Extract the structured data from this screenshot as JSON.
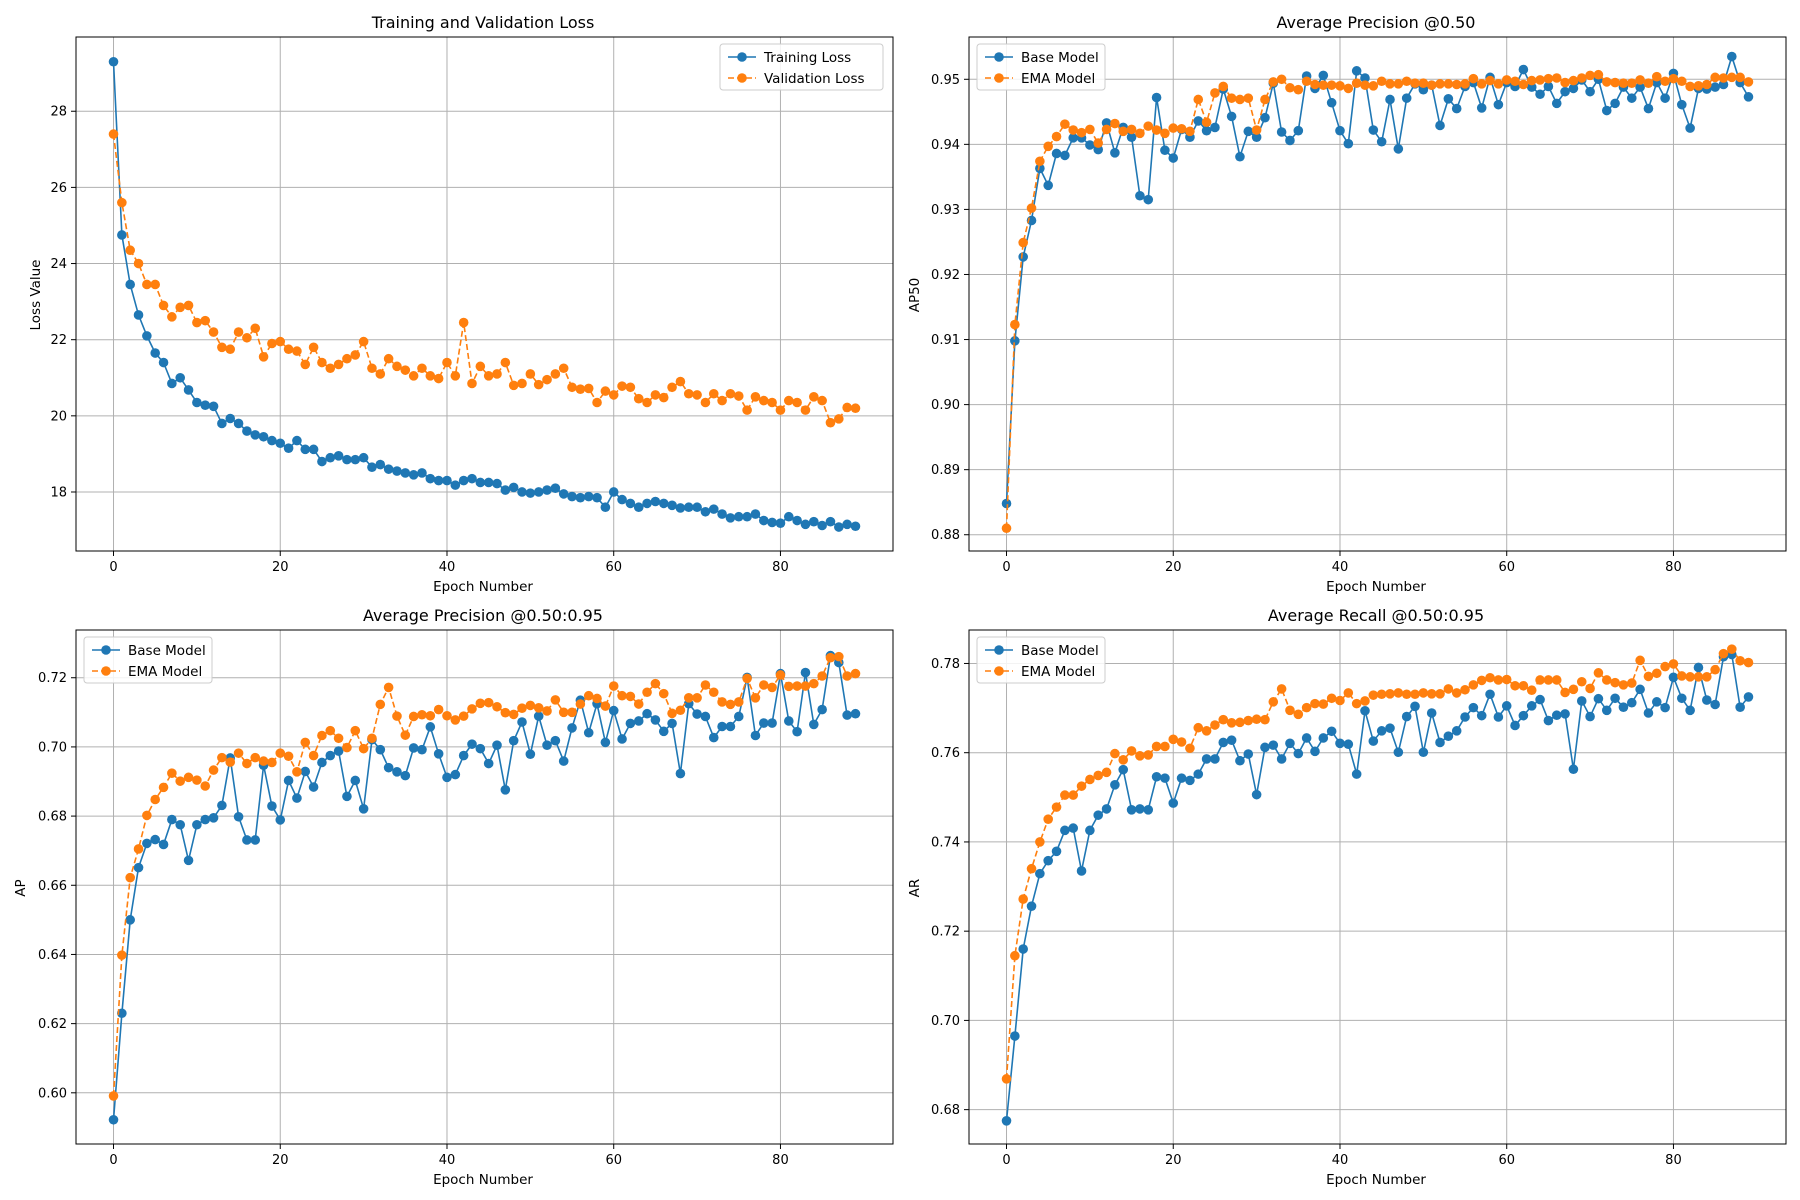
{
  "colors": {
    "series_1": "#1f77b4",
    "series_2": "#ff7f0e",
    "grid": "#b0b0b0"
  },
  "chart_data": [
    {
      "type": "line",
      "title": "Training and Validation Loss",
      "xlabel": "Epoch Number",
      "ylabel": "Loss Value",
      "xlim": [
        -4.5,
        93.5
      ],
      "ylim": [
        16.45,
        29.95
      ],
      "xticks": [
        0,
        20,
        40,
        60,
        80
      ],
      "yticks": [
        18,
        20,
        22,
        24,
        26,
        28
      ],
      "tick_decimals": 0,
      "grid": true,
      "legend_position": "top-right",
      "series": [
        {
          "name": "Training Loss",
          "style": "solid",
          "values": [
            29.3,
            24.75,
            23.45,
            22.65,
            22.1,
            21.65,
            21.4,
            20.85,
            21.0,
            20.68,
            20.35,
            20.28,
            20.25,
            19.8,
            19.93,
            19.8,
            19.6,
            19.5,
            19.45,
            19.35,
            19.28,
            19.15,
            19.35,
            19.12,
            19.12,
            18.8,
            18.9,
            18.95,
            18.85,
            18.85,
            18.9,
            18.65,
            18.72,
            18.6,
            18.55,
            18.5,
            18.45,
            18.5,
            18.35,
            18.3,
            18.3,
            18.18,
            18.3,
            18.35,
            18.25,
            18.25,
            18.22,
            18.05,
            18.12,
            18.0,
            17.97,
            18.0,
            18.05,
            18.1,
            17.95,
            17.88,
            17.85,
            17.88,
            17.85,
            17.6,
            18.0,
            17.8,
            17.7,
            17.6,
            17.7,
            17.75,
            17.7,
            17.65,
            17.58,
            17.6,
            17.6,
            17.48,
            17.55,
            17.42,
            17.32,
            17.35,
            17.35,
            17.42,
            17.25,
            17.2,
            17.18,
            17.35,
            17.25,
            17.15,
            17.22,
            17.12,
            17.22,
            17.08,
            17.15,
            17.1
          ]
        },
        {
          "name": "Validation Loss",
          "style": "dashed",
          "values": [
            27.4,
            25.6,
            24.35,
            24.0,
            23.45,
            23.45,
            22.9,
            22.6,
            22.85,
            22.9,
            22.45,
            22.5,
            22.2,
            21.8,
            21.75,
            22.2,
            22.05,
            22.3,
            21.55,
            21.9,
            21.95,
            21.75,
            21.7,
            21.35,
            21.8,
            21.4,
            21.25,
            21.35,
            21.5,
            21.6,
            21.95,
            21.25,
            21.1,
            21.5,
            21.3,
            21.2,
            21.05,
            21.25,
            21.05,
            20.98,
            21.4,
            21.05,
            22.45,
            20.85,
            21.3,
            21.05,
            21.1,
            21.4,
            20.8,
            20.85,
            21.1,
            20.82,
            20.95,
            21.1,
            21.25,
            20.75,
            20.7,
            20.72,
            20.35,
            20.65,
            20.55,
            20.78,
            20.75,
            20.45,
            20.35,
            20.55,
            20.48,
            20.75,
            20.9,
            20.58,
            20.55,
            20.35,
            20.58,
            20.4,
            20.58,
            20.52,
            20.15,
            20.5,
            20.4,
            20.35,
            20.15,
            20.4,
            20.35,
            20.15,
            20.5,
            20.4,
            19.82,
            19.92,
            20.22,
            20.2
          ]
        }
      ]
    },
    {
      "type": "line",
      "title": "Average Precision @0.50",
      "xlabel": "Epoch Number",
      "ylabel": "AP50",
      "xlim": [
        -4.5,
        93.5
      ],
      "ylim": [
        0.8775,
        0.9565
      ],
      "xticks": [
        0,
        20,
        40,
        60,
        80
      ],
      "yticks": [
        0.88,
        0.89,
        0.9,
        0.91,
        0.92,
        0.93,
        0.94,
        0.95
      ],
      "tick_decimals": 2,
      "grid": true,
      "legend_position": "top-left",
      "series": [
        {
          "name": "Base Model",
          "style": "solid",
          "values": [
            0.8848,
            0.9098,
            0.9227,
            0.9283,
            0.9363,
            0.9337,
            0.9386,
            0.9383,
            0.941,
            0.941,
            0.9399,
            0.9392,
            0.9433,
            0.9387,
            0.9426,
            0.9411,
            0.9321,
            0.9315,
            0.9472,
            0.9391,
            0.9379,
            0.9423,
            0.9411,
            0.9436,
            0.9421,
            0.9426,
            0.9485,
            0.9443,
            0.9381,
            0.942,
            0.9411,
            0.9441,
            0.9494,
            0.9419,
            0.9406,
            0.9421,
            0.9505,
            0.9486,
            0.9506,
            0.9464,
            0.9421,
            0.9401,
            0.9513,
            0.9502,
            0.9422,
            0.9404,
            0.9469,
            0.9393,
            0.9471,
            0.9493,
            0.9484,
            0.9491,
            0.9429,
            0.947,
            0.9455,
            0.9489,
            0.9495,
            0.9456,
            0.9503,
            0.9461,
            0.9495,
            0.9489,
            0.9515,
            0.9488,
            0.9477,
            0.9489,
            0.9463,
            0.9481,
            0.9486,
            0.9499,
            0.9481,
            0.95,
            0.9452,
            0.9463,
            0.9488,
            0.9471,
            0.9488,
            0.9455,
            0.9495,
            0.9471,
            0.9509,
            0.9461,
            0.9425,
            0.9486,
            0.9485,
            0.9488,
            0.9492,
            0.9535,
            0.9495,
            0.9473
          ]
        },
        {
          "name": "EMA Model",
          "style": "dashed",
          "values": [
            0.881,
            0.9123,
            0.9249,
            0.9302,
            0.9374,
            0.9397,
            0.9412,
            0.9431,
            0.9422,
            0.9418,
            0.9423,
            0.9402,
            0.9423,
            0.9432,
            0.942,
            0.9423,
            0.9417,
            0.9428,
            0.9422,
            0.9417,
            0.9425,
            0.9424,
            0.942,
            0.9469,
            0.9434,
            0.9479,
            0.9489,
            0.9471,
            0.9469,
            0.9471,
            0.9422,
            0.9469,
            0.9496,
            0.95,
            0.9487,
            0.9484,
            0.9497,
            0.9492,
            0.9491,
            0.9491,
            0.949,
            0.9486,
            0.9494,
            0.9491,
            0.949,
            0.9497,
            0.9493,
            0.9493,
            0.9497,
            0.9494,
            0.9494,
            0.9491,
            0.9493,
            0.9493,
            0.9492,
            0.9493,
            0.9501,
            0.9493,
            0.9498,
            0.9493,
            0.9499,
            0.9497,
            0.9492,
            0.9498,
            0.9499,
            0.9501,
            0.9502,
            0.9495,
            0.9498,
            0.9502,
            0.9506,
            0.9507,
            0.9496,
            0.9495,
            0.9494,
            0.9494,
            0.9499,
            0.9494,
            0.9504,
            0.9497,
            0.9501,
            0.9497,
            0.9489,
            0.949,
            0.9492,
            0.9503,
            0.9502,
            0.9503,
            0.9503,
            0.9496
          ]
        }
      ]
    },
    {
      "type": "line",
      "title": "Average Precision @0.50:0.95",
      "xlabel": "Epoch Number",
      "ylabel": "AP",
      "xlim": [
        -4.5,
        93.5
      ],
      "ylim": [
        0.5852,
        0.7338
      ],
      "xticks": [
        0,
        20,
        40,
        60,
        80
      ],
      "yticks": [
        0.6,
        0.62,
        0.64,
        0.66,
        0.68,
        0.7,
        0.72
      ],
      "tick_decimals": 2,
      "grid": true,
      "legend_position": "top-left",
      "series": [
        {
          "name": "Base Model",
          "style": "solid",
          "values": [
            0.5922,
            0.623,
            0.65,
            0.6651,
            0.6721,
            0.6732,
            0.6718,
            0.679,
            0.6775,
            0.6672,
            0.6775,
            0.679,
            0.6795,
            0.6831,
            0.6968,
            0.6798,
            0.6731,
            0.6731,
            0.6947,
            0.6829,
            0.6789,
            0.6903,
            0.6852,
            0.6929,
            0.6884,
            0.6955,
            0.6975,
            0.6988,
            0.6857,
            0.6903,
            0.6821,
            0.7021,
            0.6992,
            0.694,
            0.6928,
            0.6917,
            0.6997,
            0.6992,
            0.7058,
            0.698,
            0.6912,
            0.692,
            0.6975,
            0.7008,
            0.6995,
            0.6952,
            0.7005,
            0.6876,
            0.7018,
            0.7072,
            0.6979,
            0.7089,
            0.7005,
            0.7018,
            0.6959,
            0.7055,
            0.7135,
            0.7041,
            0.7125,
            0.7013,
            0.7105,
            0.7023,
            0.7068,
            0.7075,
            0.7096,
            0.7078,
            0.7045,
            0.7068,
            0.6923,
            0.7125,
            0.7095,
            0.7088,
            0.7027,
            0.7059,
            0.7059,
            0.7088,
            0.7201,
            0.7033,
            0.7069,
            0.7069,
            0.7212,
            0.7075,
            0.7044,
            0.7215,
            0.7065,
            0.7108,
            0.7264,
            0.7244,
            0.7092,
            0.7096
          ]
        },
        {
          "name": "EMA Model",
          "style": "dashed",
          "values": [
            0.5991,
            0.6398,
            0.6622,
            0.6705,
            0.6802,
            0.6848,
            0.6883,
            0.6924,
            0.6901,
            0.6912,
            0.6904,
            0.6887,
            0.6933,
            0.6969,
            0.6956,
            0.6982,
            0.6952,
            0.6969,
            0.6959,
            0.6955,
            0.6982,
            0.6973,
            0.6928,
            0.7013,
            0.6975,
            0.7033,
            0.7047,
            0.7025,
            0.6998,
            0.7047,
            0.6995,
            0.7025,
            0.7123,
            0.7172,
            0.7089,
            0.7034,
            0.7088,
            0.7093,
            0.709,
            0.7108,
            0.709,
            0.7078,
            0.7089,
            0.711,
            0.7126,
            0.7128,
            0.7116,
            0.7099,
            0.7094,
            0.7112,
            0.712,
            0.7113,
            0.7104,
            0.7136,
            0.71,
            0.71,
            0.7124,
            0.7148,
            0.714,
            0.7118,
            0.7176,
            0.7148,
            0.7146,
            0.7124,
            0.7158,
            0.7183,
            0.7154,
            0.7097,
            0.7106,
            0.7142,
            0.7142,
            0.7179,
            0.7158,
            0.713,
            0.7123,
            0.713,
            0.7198,
            0.7142,
            0.7179,
            0.7172,
            0.7208,
            0.7175,
            0.7176,
            0.7176,
            0.7183,
            0.7205,
            0.7258,
            0.7261,
            0.7205,
            0.7212
          ]
        }
      ]
    },
    {
      "type": "line",
      "title": "Average Recall @0.50:0.95",
      "xlabel": "Epoch Number",
      "ylabel": "AR",
      "xlim": [
        -4.5,
        93.5
      ],
      "ylim": [
        0.6723,
        0.7875
      ],
      "xticks": [
        0,
        20,
        40,
        60,
        80
      ],
      "yticks": [
        0.68,
        0.7,
        0.72,
        0.74,
        0.76,
        0.78
      ],
      "tick_decimals": 2,
      "grid": true,
      "legend_position": "top-left",
      "series": [
        {
          "name": "Base Model",
          "style": "solid",
          "values": [
            0.6775,
            0.6965,
            0.716,
            0.7256,
            0.7329,
            0.7358,
            0.7379,
            0.7426,
            0.7431,
            0.7335,
            0.7426,
            0.746,
            0.7474,
            0.7528,
            0.7562,
            0.7472,
            0.7474,
            0.7472,
            0.7546,
            0.7543,
            0.7487,
            0.7543,
            0.7538,
            0.7552,
            0.7586,
            0.7586,
            0.7623,
            0.7628,
            0.7582,
            0.7597,
            0.7506,
            0.7612,
            0.7617,
            0.7586,
            0.7621,
            0.7598,
            0.7633,
            0.7603,
            0.7633,
            0.7648,
            0.7621,
            0.7619,
            0.7552,
            0.7694,
            0.7626,
            0.7649,
            0.7655,
            0.7601,
            0.7681,
            0.7704,
            0.7601,
            0.7689,
            0.7623,
            0.7637,
            0.7649,
            0.768,
            0.7701,
            0.7683,
            0.7731,
            0.768,
            0.7705,
            0.7661,
            0.7683,
            0.7705,
            0.7719,
            0.7672,
            0.7684,
            0.7687,
            0.7563,
            0.7716,
            0.7681,
            0.7721,
            0.7695,
            0.7722,
            0.7702,
            0.7712,
            0.7742,
            0.7689,
            0.7714,
            0.7701,
            0.7769,
            0.7722,
            0.7695,
            0.7791,
            0.7718,
            0.7708,
            0.7815,
            0.782,
            0.7702,
            0.7725
          ]
        },
        {
          "name": "EMA Model",
          "style": "dashed",
          "values": [
            0.6869,
            0.7145,
            0.7272,
            0.734,
            0.74,
            0.7451,
            0.7478,
            0.7505,
            0.7505,
            0.7525,
            0.754,
            0.7549,
            0.7556,
            0.7598,
            0.7584,
            0.7604,
            0.7593,
            0.7595,
            0.7614,
            0.7614,
            0.763,
            0.7624,
            0.761,
            0.7656,
            0.7649,
            0.7662,
            0.7674,
            0.7667,
            0.7668,
            0.7672,
            0.7675,
            0.7674,
            0.7714,
            0.7743,
            0.7695,
            0.7686,
            0.7701,
            0.771,
            0.7709,
            0.7722,
            0.7717,
            0.7734,
            0.771,
            0.7716,
            0.7729,
            0.7731,
            0.7732,
            0.7734,
            0.7731,
            0.7731,
            0.7734,
            0.7732,
            0.7732,
            0.7743,
            0.7734,
            0.7741,
            0.7752,
            0.7762,
            0.7768,
            0.7763,
            0.7764,
            0.775,
            0.775,
            0.774,
            0.7763,
            0.7763,
            0.7763,
            0.7735,
            0.7742,
            0.7759,
            0.7744,
            0.7779,
            0.7763,
            0.7757,
            0.7752,
            0.7756,
            0.7807,
            0.7771,
            0.7778,
            0.7793,
            0.7799,
            0.7772,
            0.777,
            0.777,
            0.777,
            0.7786,
            0.7822,
            0.7832,
            0.7806,
            0.7802
          ]
        }
      ]
    }
  ]
}
